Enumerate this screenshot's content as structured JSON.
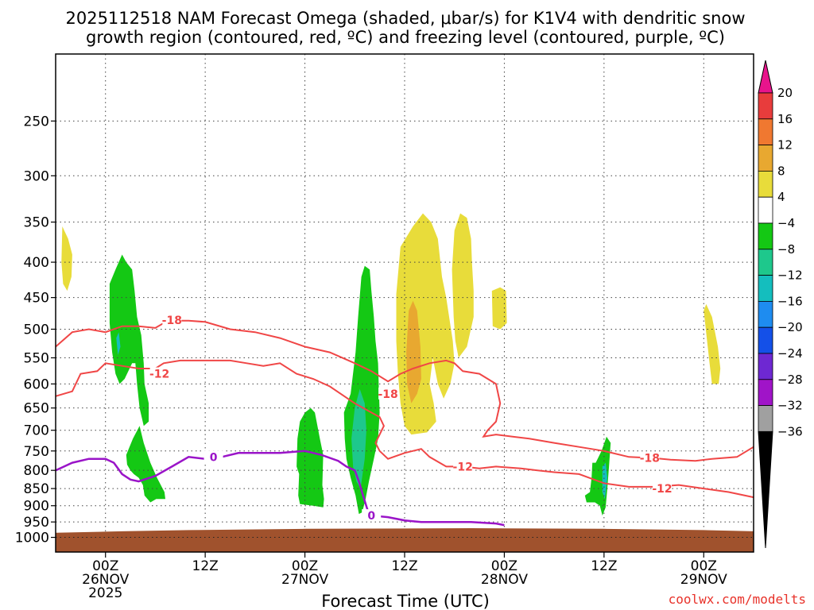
{
  "chart_data": {
    "type": "contour",
    "title_lines": [
      "2025112518 NAM Forecast Omega (shaded, μbar/s) for K1V4 with dendritic snow",
      "growth region (contoured, red, ºC) and freezing level (contoured, purple, ºC)"
    ],
    "xlabel": "Forecast Time (UTC)",
    "x_range_hours": [
      0,
      84
    ],
    "x_ticks": [
      {
        "hour": 6,
        "lines": [
          "00Z",
          "26NOV",
          "2025"
        ]
      },
      {
        "hour": 18,
        "lines": [
          "12Z"
        ]
      },
      {
        "hour": 30,
        "lines": [
          "00Z",
          "27NOV"
        ]
      },
      {
        "hour": 42,
        "lines": [
          "12Z"
        ]
      },
      {
        "hour": 54,
        "lines": [
          "00Z",
          "28NOV"
        ]
      },
      {
        "hour": 66,
        "lines": [
          "12Z"
        ]
      },
      {
        "hour": 78,
        "lines": [
          "00Z",
          "29NOV"
        ]
      }
    ],
    "y_axis": "pressure_hPa_log",
    "y_range_hPa": [
      200,
      1050
    ],
    "y_ticks": [
      250,
      300,
      350,
      400,
      450,
      500,
      550,
      600,
      650,
      700,
      750,
      800,
      850,
      900,
      950,
      1000
    ],
    "colorbar": {
      "labels": [
        "20",
        "16",
        "12",
        "8",
        "4",
        "−4",
        "−8",
        "−12",
        "−16",
        "−20",
        "−24",
        "−28",
        "−32",
        "−36"
      ],
      "colors": [
        "#e83c3c",
        "#f07830",
        "#e8a830",
        "#e8dc3a",
        "#ffffff",
        "#14c814",
        "#1ec88c",
        "#14bebe",
        "#1e8cf0",
        "#1450e8",
        "#6e28d2",
        "#a014c8",
        "#a0a0a0"
      ],
      "top_arrow_color": "#e8148c",
      "bottom_arrow_color": "#000000"
    },
    "colors": {
      "ground": "#a0522d",
      "dgz_contour": "#f04646",
      "freezing_contour": "#9a14c8",
      "yellow": "#e8dc3a",
      "orange": "#e8a830",
      "green": "#14c814",
      "teal": "#1ec88c",
      "cyan": "#14bebe",
      "blue": "#1e8cf0"
    },
    "contour_labels": [
      {
        "text": "-18",
        "hour": 14,
        "hPa": 485,
        "color": "dgz"
      },
      {
        "text": "-12",
        "hour": 12.5,
        "hPa": 580,
        "color": "dgz"
      },
      {
        "text": "-18",
        "hour": 40,
        "hPa": 620,
        "color": "dgz"
      },
      {
        "text": "-12",
        "hour": 49,
        "hPa": 790,
        "color": "dgz"
      },
      {
        "text": "-18",
        "hour": 71.5,
        "hPa": 768,
        "color": "dgz"
      },
      {
        "text": "-12",
        "hour": 73,
        "hPa": 850,
        "color": "dgz"
      },
      {
        "text": "0",
        "hour": 19,
        "hPa": 765,
        "color": "fz"
      },
      {
        "text": "0",
        "hour": 38,
        "hPa": 930,
        "color": "fz"
      }
    ],
    "dgz_minus18": [
      [
        0,
        530
      ],
      [
        2,
        505
      ],
      [
        4,
        500
      ],
      [
        6,
        505
      ],
      [
        8,
        495
      ],
      [
        10,
        495
      ],
      [
        12,
        498
      ],
      [
        13,
        490
      ],
      [
        14,
        486
      ],
      [
        16,
        486
      ],
      [
        18,
        488
      ],
      [
        21,
        500
      ],
      [
        24,
        505
      ],
      [
        27,
        515
      ],
      [
        30,
        530
      ],
      [
        33,
        540
      ],
      [
        36,
        560
      ],
      [
        38,
        575
      ],
      [
        40,
        595
      ],
      [
        41.5,
        580
      ],
      [
        43,
        570
      ],
      [
        45,
        560
      ],
      [
        47,
        555
      ],
      [
        48,
        560
      ],
      [
        49,
        575
      ],
      [
        51,
        580
      ],
      [
        53,
        600
      ],
      [
        53.5,
        640
      ],
      [
        53,
        680
      ],
      [
        52,
        700
      ],
      [
        51.5,
        715
      ],
      [
        53,
        710
      ],
      [
        55,
        715
      ],
      [
        57,
        720
      ],
      [
        60,
        730
      ],
      [
        63,
        740
      ],
      [
        66,
        750
      ],
      [
        69,
        765
      ],
      [
        72,
        768
      ],
      [
        74,
        772
      ],
      [
        77,
        775
      ],
      [
        79,
        770
      ],
      [
        82,
        765
      ],
      [
        84,
        740
      ]
    ],
    "dgz_minus12": [
      [
        0,
        625
      ],
      [
        2,
        615
      ],
      [
        3,
        580
      ],
      [
        5,
        575
      ],
      [
        6,
        560
      ],
      [
        8,
        565
      ],
      [
        10,
        570
      ],
      [
        12,
        570
      ],
      [
        13,
        560
      ],
      [
        15,
        555
      ],
      [
        18,
        555
      ],
      [
        21,
        555
      ],
      [
        23,
        560
      ],
      [
        25,
        565
      ],
      [
        27,
        560
      ],
      [
        29,
        580
      ],
      [
        31,
        590
      ],
      [
        33,
        605
      ],
      [
        36,
        640
      ],
      [
        38,
        660
      ],
      [
        39,
        670
      ],
      [
        39.5,
        690
      ],
      [
        39,
        710
      ],
      [
        38.5,
        730
      ],
      [
        39,
        750
      ],
      [
        40,
        770
      ],
      [
        42,
        755
      ],
      [
        44,
        745
      ],
      [
        45,
        765
      ],
      [
        47,
        790
      ],
      [
        49,
        790
      ],
      [
        51,
        795
      ],
      [
        53,
        790
      ],
      [
        56,
        795
      ],
      [
        58,
        800
      ],
      [
        60,
        805
      ],
      [
        63,
        810
      ],
      [
        66,
        835
      ],
      [
        69,
        845
      ],
      [
        72,
        845
      ],
      [
        75,
        840
      ],
      [
        78,
        850
      ],
      [
        81,
        860
      ],
      [
        84,
        875
      ]
    ],
    "freezing_0": [
      [
        0,
        800
      ],
      [
        2,
        780
      ],
      [
        4,
        770
      ],
      [
        6,
        770
      ],
      [
        7,
        780
      ],
      [
        8,
        810
      ],
      [
        9,
        825
      ],
      [
        10,
        830
      ],
      [
        12,
        815
      ],
      [
        14,
        790
      ],
      [
        16,
        765
      ],
      [
        18,
        770
      ],
      [
        20,
        765
      ],
      [
        22,
        755
      ],
      [
        24,
        755
      ],
      [
        27,
        755
      ],
      [
        30,
        750
      ],
      [
        32,
        760
      ],
      [
        34,
        775
      ],
      [
        35,
        790
      ],
      [
        36,
        800
      ],
      [
        36.5,
        830
      ],
      [
        37,
        870
      ],
      [
        37.5,
        910
      ],
      [
        38,
        930
      ],
      [
        40,
        935
      ],
      [
        42,
        945
      ],
      [
        44,
        950
      ],
      [
        46,
        950
      ],
      [
        48,
        950
      ],
      [
        50,
        950
      ],
      [
        53,
        955
      ],
      [
        54,
        960
      ]
    ],
    "omega_patches": [
      {
        "value": "4-8",
        "color": "yellow",
        "outline": [
          [
            0.8,
            355
          ],
          [
            1.5,
            370
          ],
          [
            2,
            390
          ],
          [
            1.9,
            420
          ],
          [
            1.4,
            440
          ],
          [
            0.9,
            430
          ],
          [
            0.7,
            400
          ]
        ]
      },
      {
        "value": "4-8",
        "color": "yellow",
        "outline": [
          [
            41,
            445
          ],
          [
            41.5,
            380
          ],
          [
            43,
            355
          ],
          [
            44.2,
            340
          ],
          [
            45.2,
            350
          ],
          [
            46,
            370
          ],
          [
            46.5,
            420
          ],
          [
            47,
            450
          ],
          [
            47.8,
            520
          ],
          [
            48,
            560
          ],
          [
            47.5,
            600
          ],
          [
            46.7,
            630
          ],
          [
            46,
            600
          ],
          [
            45.4,
            550
          ],
          [
            45,
            600
          ],
          [
            45.5,
            640
          ],
          [
            45.8,
            680
          ],
          [
            44.7,
            705
          ],
          [
            42.8,
            710
          ],
          [
            42,
            690
          ],
          [
            41.5,
            640
          ],
          [
            41.2,
            580
          ],
          [
            41,
            520
          ]
        ]
      },
      {
        "value": "4-8",
        "color": "yellow",
        "outline": [
          [
            47.7,
            410
          ],
          [
            48,
            360
          ],
          [
            48.7,
            340
          ],
          [
            49.5,
            345
          ],
          [
            49.7,
            355
          ],
          [
            50,
            370
          ],
          [
            50.1,
            400
          ],
          [
            50.3,
            440
          ],
          [
            50.3,
            480
          ],
          [
            49.5,
            530
          ],
          [
            48.5,
            550
          ],
          [
            48.1,
            520
          ],
          [
            47.9,
            480
          ]
        ]
      },
      {
        "value": "4-8",
        "color": "yellow",
        "outline": [
          [
            52.5,
            440
          ],
          [
            53.5,
            435
          ],
          [
            54.2,
            440
          ],
          [
            54.3,
            490
          ],
          [
            53.5,
            500
          ],
          [
            52.6,
            495
          ]
        ]
      },
      {
        "value": "4-8",
        "color": "yellow",
        "outline": [
          [
            78,
            470
          ],
          [
            78.3,
            460
          ],
          [
            79,
            480
          ],
          [
            79.7,
            530
          ],
          [
            80,
            570
          ],
          [
            79.8,
            600
          ],
          [
            79,
            600
          ],
          [
            78.7,
            560
          ],
          [
            78.4,
            520
          ]
        ]
      },
      {
        "value": "8-12",
        "color": "orange",
        "outline": [
          [
            42.5,
            470
          ],
          [
            43,
            455
          ],
          [
            43.5,
            470
          ],
          [
            43.9,
            530
          ],
          [
            44,
            590
          ],
          [
            43.5,
            620
          ],
          [
            42.8,
            640
          ],
          [
            42.3,
            600
          ],
          [
            42.2,
            540
          ]
        ]
      },
      {
        "value": "-4 to -8",
        "color": "green",
        "outline": [
          [
            6.5,
            430
          ],
          [
            7.2,
            410
          ],
          [
            8,
            390
          ],
          [
            8.5,
            400
          ],
          [
            9.2,
            410
          ],
          [
            9.5,
            440
          ],
          [
            9.8,
            480
          ],
          [
            10.3,
            510
          ],
          [
            10.6,
            560
          ],
          [
            10.7,
            600
          ],
          [
            11.2,
            640
          ],
          [
            11.2,
            680
          ],
          [
            10.6,
            690
          ],
          [
            10.1,
            650
          ],
          [
            9.8,
            600
          ],
          [
            9.6,
            560
          ],
          [
            9.2,
            560
          ],
          [
            8.3,
            590
          ],
          [
            7.7,
            600
          ],
          [
            7.2,
            580
          ],
          [
            6.8,
            540
          ],
          [
            6.5,
            490
          ]
        ]
      },
      {
        "value": "-4 to -8",
        "color": "green",
        "outline": [
          [
            8.5,
            760
          ],
          [
            9.3,
            720
          ],
          [
            10.1,
            690
          ],
          [
            10.6,
            730
          ],
          [
            11.4,
            780
          ],
          [
            12.2,
            820
          ],
          [
            13.1,
            860
          ],
          [
            13.2,
            880
          ],
          [
            12.1,
            880
          ],
          [
            11.4,
            890
          ],
          [
            10.7,
            870
          ],
          [
            10.5,
            840
          ],
          [
            10,
            820
          ],
          [
            9.4,
            810
          ],
          [
            9,
            800
          ],
          [
            8.6,
            785
          ]
        ]
      },
      {
        "value": "-4 to -8",
        "color": "green",
        "outline": [
          [
            29,
            790
          ],
          [
            29.1,
            720
          ],
          [
            29.4,
            680
          ],
          [
            30,
            660
          ],
          [
            30.7,
            650
          ],
          [
            31.2,
            660
          ],
          [
            31.8,
            720
          ],
          [
            32.2,
            760
          ],
          [
            32.1,
            840
          ],
          [
            32.3,
            880
          ],
          [
            32.2,
            905
          ],
          [
            31,
            900
          ],
          [
            29.4,
            895
          ],
          [
            29.2,
            870
          ],
          [
            29.3,
            810
          ]
        ]
      },
      {
        "value": "-4 to -8",
        "color": "green",
        "outline": [
          [
            34.7,
            660
          ],
          [
            35.5,
            620
          ],
          [
            36.1,
            540
          ],
          [
            36.4,
            480
          ],
          [
            36.8,
            420
          ],
          [
            37.2,
            405
          ],
          [
            37.8,
            410
          ],
          [
            38,
            440
          ],
          [
            38.3,
            480
          ],
          [
            38.5,
            520
          ],
          [
            38.8,
            560
          ],
          [
            38.9,
            610
          ],
          [
            39,
            660
          ],
          [
            38.8,
            720
          ],
          [
            38.3,
            770
          ],
          [
            37.7,
            830
          ],
          [
            37.3,
            880
          ],
          [
            36.9,
            920
          ],
          [
            36.5,
            925
          ],
          [
            36.1,
            870
          ],
          [
            35.5,
            820
          ],
          [
            35,
            770
          ],
          [
            34.8,
            720
          ]
        ]
      },
      {
        "value": "-4 to -8",
        "color": "green",
        "outline": [
          [
            65,
            780
          ],
          [
            65.7,
            750
          ],
          [
            66.3,
            715
          ],
          [
            66.8,
            730
          ],
          [
            66.6,
            790
          ],
          [
            66.4,
            850
          ],
          [
            66.2,
            905
          ],
          [
            65.8,
            930
          ],
          [
            65.5,
            900
          ],
          [
            64.9,
            890
          ],
          [
            63.9,
            890
          ],
          [
            63.7,
            870
          ],
          [
            64.3,
            860
          ],
          [
            64.5,
            820
          ],
          [
            64.6,
            780
          ]
        ]
      },
      {
        "value": "-8 to -12",
        "color": "teal",
        "outline": [
          [
            35.6,
            720
          ],
          [
            36,
            650
          ],
          [
            36.6,
            610
          ],
          [
            37.2,
            640
          ],
          [
            37.4,
            700
          ],
          [
            37.2,
            770
          ],
          [
            36.7,
            850
          ],
          [
            36.2,
            830
          ],
          [
            35.8,
            790
          ]
        ]
      },
      {
        "value": "-12 to -16",
        "color": "cyan",
        "outline": [
          [
            65.8,
            790
          ],
          [
            66.2,
            780
          ],
          [
            66.4,
            820
          ],
          [
            66.1,
            880
          ],
          [
            65.8,
            860
          ]
        ]
      },
      {
        "value": "-12 to -16",
        "color": "cyan",
        "outline": [
          [
            7.3,
            515
          ],
          [
            7.6,
            505
          ],
          [
            7.8,
            530
          ],
          [
            7.5,
            545
          ]
        ]
      }
    ],
    "credit": "coolwx.com/modelts"
  }
}
